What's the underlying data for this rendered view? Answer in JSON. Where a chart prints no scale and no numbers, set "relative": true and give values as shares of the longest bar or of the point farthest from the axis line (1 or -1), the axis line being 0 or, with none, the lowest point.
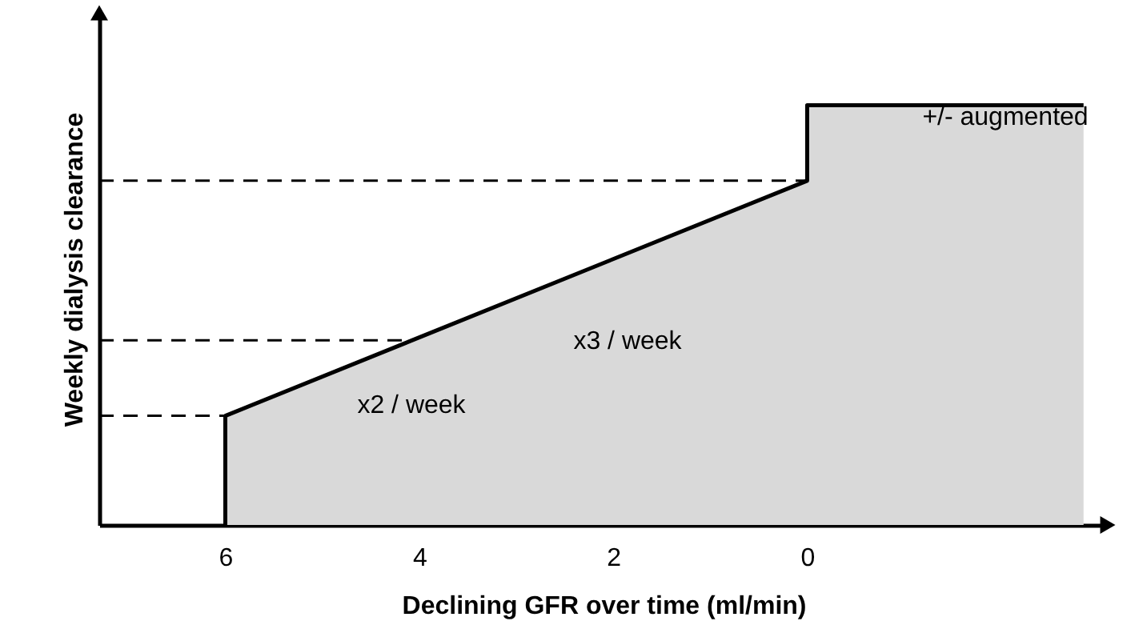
{
  "chart_data": {
    "type": "area",
    "relative": true,
    "xlabel": "Declining GFR over time (ml/min)",
    "ylabel": "Weekly dialysis clearance",
    "x": [
      6,
      6,
      0,
      0,
      -2.85
    ],
    "series": [
      {
        "color": "#d9d9d9",
        "values": [
          0,
          0.26,
          0.82,
          1,
          1
        ]
      }
    ],
    "xlim": [
      7.3,
      -3.1
    ],
    "xticks": [
      6,
      4,
      2,
      0
    ],
    "ref_lines": [
      {
        "axis": "y",
        "value": 0.26,
        "label": null,
        "line_style": "dashed"
      },
      {
        "axis": "y",
        "value": 0.44,
        "label": null,
        "line_style": "dashed"
      },
      {
        "axis": "y",
        "value": 0.82,
        "label": null,
        "line_style": "dashed"
      }
    ],
    "annotations": [
      "x2 / week",
      "x3 / week",
      "+/- augmented"
    ],
    "grid": false
  }
}
